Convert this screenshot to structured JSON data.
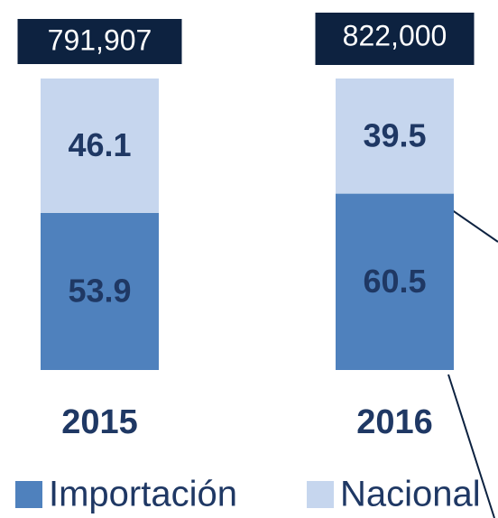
{
  "chart_data": {
    "type": "stacked_bar",
    "categories": [
      "2015",
      "2016"
    ],
    "series": [
      {
        "name": "Importación",
        "color": "#4f81bd",
        "values": [
          53.9,
          60.5
        ]
      },
      {
        "name": "Nacional",
        "color": "#c6d6ee",
        "values": [
          46.1,
          39.5
        ]
      }
    ],
    "totals": {
      "values": [
        791907,
        822000
      ],
      "value_labels": [
        "791,907",
        "822,000"
      ],
      "color": "#0d2240"
    },
    "ylim": [
      0,
      100
    ]
  }
}
